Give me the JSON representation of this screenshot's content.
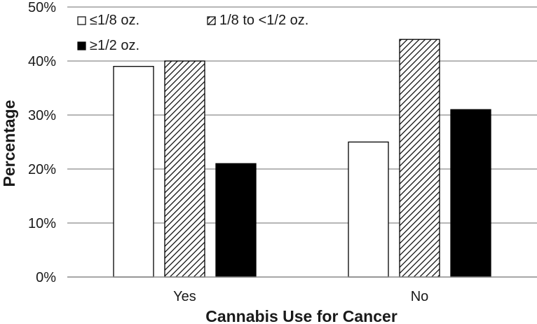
{
  "chart_data": {
    "type": "bar",
    "title": "",
    "xlabel": "Cannabis Use for Cancer",
    "ylabel": "Percentage",
    "categories": [
      "Yes",
      "No"
    ],
    "ylim": [
      0,
      50
    ],
    "yticks": [
      "0%",
      "10%",
      "20%",
      "30%",
      "40%",
      "50%"
    ],
    "grid": true,
    "legend_position": "top-left",
    "series": [
      {
        "name": "≤1/8 oz.",
        "values": [
          39,
          25
        ],
        "fill": "white"
      },
      {
        "name": "1/8 to <1/2 oz.",
        "values": [
          40,
          44
        ],
        "fill": "hatched"
      },
      {
        "name": "≥1/2 oz.",
        "values": [
          21,
          31
        ],
        "fill": "black"
      }
    ],
    "colors": {
      "black": "#000000",
      "white": "#ffffff",
      "grid": "#8c8c8c"
    }
  }
}
